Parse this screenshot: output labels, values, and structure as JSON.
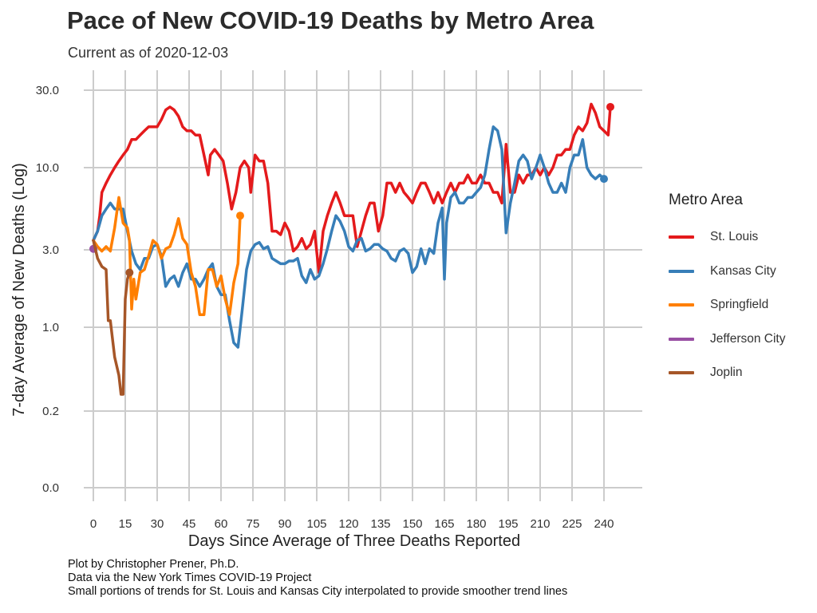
{
  "chart_data": {
    "type": "line",
    "title": "Pace of New COVID-19 Deaths by Metro Area",
    "subtitle": "Current as of 2020-12-03",
    "xlabel": "Days Since Average of Three Deaths Reported",
    "ylabel": "7-day Average of New Deaths (Log)",
    "y_scale": "log",
    "x_ticks": [
      0,
      15,
      30,
      45,
      60,
      75,
      90,
      105,
      120,
      135,
      150,
      165,
      180,
      195,
      210,
      225,
      240
    ],
    "y_ticks": [
      "0.0",
      "0.2",
      "1.0",
      "3.0",
      "10.0",
      "30.0"
    ],
    "xlim": [
      -5,
      248
    ],
    "grid": true,
    "legend": {
      "title": "Metro Area",
      "position": "right"
    },
    "series": [
      {
        "name": "St. Louis",
        "color": "#e41a1c",
        "points": [
          [
            0,
            3.5
          ],
          [
            2,
            4
          ],
          [
            3,
            5
          ],
          [
            4,
            7
          ],
          [
            6,
            8
          ],
          [
            8,
            9
          ],
          [
            10,
            10
          ],
          [
            12,
            11
          ],
          [
            14,
            12
          ],
          [
            16,
            13
          ],
          [
            18,
            15
          ],
          [
            20,
            15
          ],
          [
            22,
            16
          ],
          [
            24,
            17
          ],
          [
            26,
            18
          ],
          [
            28,
            18
          ],
          [
            30,
            18
          ],
          [
            32,
            20
          ],
          [
            34,
            23
          ],
          [
            36,
            24
          ],
          [
            38,
            23
          ],
          [
            40,
            21
          ],
          [
            42,
            18
          ],
          [
            44,
            17
          ],
          [
            46,
            17
          ],
          [
            48,
            16
          ],
          [
            50,
            16
          ],
          [
            52,
            12
          ],
          [
            54,
            9
          ],
          [
            55,
            12
          ],
          [
            57,
            13
          ],
          [
            59,
            12
          ],
          [
            61,
            11
          ],
          [
            63,
            8
          ],
          [
            65,
            5.5
          ],
          [
            67,
            7
          ],
          [
            69,
            10
          ],
          [
            71,
            11
          ],
          [
            73,
            10
          ],
          [
            74,
            7
          ],
          [
            76,
            12
          ],
          [
            78,
            11
          ],
          [
            80,
            11
          ],
          [
            82,
            8
          ],
          [
            84,
            4
          ],
          [
            86,
            4
          ],
          [
            88,
            3.8
          ],
          [
            90,
            4.5
          ],
          [
            92,
            4
          ],
          [
            94,
            3
          ],
          [
            96,
            3.2
          ],
          [
            98,
            3.6
          ],
          [
            100,
            3.1
          ],
          [
            102,
            3.3
          ],
          [
            104,
            4
          ],
          [
            106,
            2.2
          ],
          [
            108,
            4
          ],
          [
            110,
            5
          ],
          [
            112,
            6
          ],
          [
            114,
            7
          ],
          [
            116,
            6
          ],
          [
            118,
            5
          ],
          [
            120,
            5
          ],
          [
            122,
            5
          ],
          [
            124,
            3.2
          ],
          [
            126,
            4
          ],
          [
            128,
            5
          ],
          [
            130,
            6
          ],
          [
            132,
            6
          ],
          [
            134,
            4
          ],
          [
            136,
            5
          ],
          [
            138,
            8
          ],
          [
            140,
            8
          ],
          [
            142,
            7
          ],
          [
            144,
            8
          ],
          [
            146,
            7
          ],
          [
            148,
            6.5
          ],
          [
            150,
            6
          ],
          [
            152,
            7
          ],
          [
            154,
            8
          ],
          [
            156,
            8
          ],
          [
            158,
            7
          ],
          [
            160,
            6
          ],
          [
            162,
            7
          ],
          [
            164,
            6
          ],
          [
            166,
            7
          ],
          [
            168,
            8
          ],
          [
            170,
            7
          ],
          [
            172,
            8
          ],
          [
            174,
            8
          ],
          [
            176,
            9
          ],
          [
            178,
            8
          ],
          [
            180,
            8
          ],
          [
            182,
            9
          ],
          [
            184,
            8
          ],
          [
            186,
            8
          ],
          [
            188,
            7
          ],
          [
            190,
            7
          ],
          [
            192,
            6
          ],
          [
            194,
            14
          ],
          [
            196,
            7
          ],
          [
            198,
            7
          ],
          [
            200,
            9
          ],
          [
            202,
            8
          ],
          [
            204,
            9
          ],
          [
            206,
            9
          ],
          [
            208,
            10
          ],
          [
            210,
            9
          ],
          [
            212,
            10
          ],
          [
            214,
            9
          ],
          [
            216,
            10
          ],
          [
            218,
            12
          ],
          [
            220,
            12
          ],
          [
            222,
            13
          ],
          [
            224,
            13
          ],
          [
            226,
            16
          ],
          [
            228,
            18
          ],
          [
            230,
            17
          ],
          [
            232,
            19
          ],
          [
            234,
            25
          ],
          [
            236,
            22
          ],
          [
            238,
            18
          ],
          [
            240,
            17
          ],
          [
            242,
            16
          ],
          [
            243,
            24
          ]
        ],
        "end_marker": true
      },
      {
        "name": "Kansas City",
        "color": "#377eb8",
        "points": [
          [
            0,
            3.5
          ],
          [
            2,
            4
          ],
          [
            4,
            5
          ],
          [
            6,
            5.5
          ],
          [
            8,
            6
          ],
          [
            10,
            5.5
          ],
          [
            12,
            5.5
          ],
          [
            14,
            5.5
          ],
          [
            16,
            4
          ],
          [
            18,
            3
          ],
          [
            20,
            2.5
          ],
          [
            22,
            2.3
          ],
          [
            24,
            2.7
          ],
          [
            26,
            2.7
          ],
          [
            28,
            3.2
          ],
          [
            30,
            3.3
          ],
          [
            32,
            2.8
          ],
          [
            34,
            1.8
          ],
          [
            36,
            2
          ],
          [
            38,
            2.1
          ],
          [
            40,
            1.8
          ],
          [
            42,
            2.2
          ],
          [
            44,
            2.5
          ],
          [
            46,
            2
          ],
          [
            48,
            2
          ],
          [
            50,
            1.8
          ],
          [
            52,
            2
          ],
          [
            54,
            2.3
          ],
          [
            56,
            2.5
          ],
          [
            58,
            1.8
          ],
          [
            60,
            1.6
          ],
          [
            62,
            1.6
          ],
          [
            64,
            1.1
          ],
          [
            66,
            0.8
          ],
          [
            68,
            0.75
          ],
          [
            70,
            1.3
          ],
          [
            72,
            2.3
          ],
          [
            74,
            3
          ],
          [
            76,
            3.3
          ],
          [
            78,
            3.4
          ],
          [
            80,
            3.1
          ],
          [
            82,
            3.2
          ],
          [
            84,
            2.7
          ],
          [
            86,
            2.6
          ],
          [
            88,
            2.5
          ],
          [
            90,
            2.5
          ],
          [
            92,
            2.6
          ],
          [
            94,
            2.6
          ],
          [
            96,
            2.7
          ],
          [
            98,
            2.1
          ],
          [
            100,
            1.9
          ],
          [
            102,
            2.3
          ],
          [
            104,
            2
          ],
          [
            106,
            2.1
          ],
          [
            108,
            2.5
          ],
          [
            110,
            3.1
          ],
          [
            112,
            4
          ],
          [
            114,
            5
          ],
          [
            116,
            4.6
          ],
          [
            118,
            4
          ],
          [
            120,
            3.2
          ],
          [
            122,
            3
          ],
          [
            124,
            3.5
          ],
          [
            126,
            3.6
          ],
          [
            128,
            3
          ],
          [
            130,
            3.1
          ],
          [
            132,
            3.3
          ],
          [
            134,
            3.3
          ],
          [
            136,
            3.1
          ],
          [
            138,
            3
          ],
          [
            140,
            2.7
          ],
          [
            142,
            2.6
          ],
          [
            144,
            3
          ],
          [
            146,
            3.1
          ],
          [
            148,
            2.9
          ],
          [
            150,
            2.2
          ],
          [
            152,
            2.4
          ],
          [
            154,
            3.1
          ],
          [
            156,
            2.5
          ],
          [
            158,
            3.1
          ],
          [
            160,
            2.9
          ],
          [
            162,
            4.5
          ],
          [
            164,
            5.6
          ],
          [
            165,
            2
          ],
          [
            166,
            4.5
          ],
          [
            168,
            6.5
          ],
          [
            170,
            7
          ],
          [
            172,
            6
          ],
          [
            174,
            6
          ],
          [
            176,
            6.5
          ],
          [
            178,
            6.5
          ],
          [
            180,
            7
          ],
          [
            182,
            7.5
          ],
          [
            184,
            9
          ],
          [
            186,
            13
          ],
          [
            188,
            18
          ],
          [
            190,
            17
          ],
          [
            192,
            13
          ],
          [
            194,
            3.9
          ],
          [
            196,
            6
          ],
          [
            198,
            8
          ],
          [
            200,
            11
          ],
          [
            202,
            12
          ],
          [
            204,
            11
          ],
          [
            206,
            8.5
          ],
          [
            208,
            10
          ],
          [
            210,
            12
          ],
          [
            212,
            10
          ],
          [
            214,
            8
          ],
          [
            216,
            7
          ],
          [
            218,
            7
          ],
          [
            220,
            8
          ],
          [
            222,
            7
          ],
          [
            224,
            10
          ],
          [
            226,
            12
          ],
          [
            228,
            12
          ],
          [
            230,
            15
          ],
          [
            232,
            10
          ],
          [
            234,
            9
          ],
          [
            236,
            8.5
          ],
          [
            238,
            9
          ],
          [
            240,
            8.5
          ]
        ],
        "end_marker": true
      },
      {
        "name": "Springfield",
        "color": "#ff7f00",
        "points": [
          [
            0,
            3.5
          ],
          [
            2,
            3.2
          ],
          [
            4,
            3
          ],
          [
            6,
            3.2
          ],
          [
            8,
            3
          ],
          [
            10,
            4.2
          ],
          [
            12,
            6.5
          ],
          [
            14,
            4.5
          ],
          [
            16,
            4.2
          ],
          [
            17,
            3.5
          ],
          [
            18,
            1.3
          ],
          [
            19,
            2
          ],
          [
            20,
            1.5
          ],
          [
            22,
            2.2
          ],
          [
            24,
            2.3
          ],
          [
            26,
            2.8
          ],
          [
            28,
            3.5
          ],
          [
            30,
            3.3
          ],
          [
            32,
            2.7
          ],
          [
            34,
            3.1
          ],
          [
            36,
            3.2
          ],
          [
            38,
            3.8
          ],
          [
            40,
            4.8
          ],
          [
            42,
            3.6
          ],
          [
            44,
            3.3
          ],
          [
            46,
            2.2
          ],
          [
            48,
            1.8
          ],
          [
            50,
            1.2
          ],
          [
            52,
            1.2
          ],
          [
            54,
            2.3
          ],
          [
            56,
            2.3
          ],
          [
            58,
            1.8
          ],
          [
            60,
            2.1
          ],
          [
            62,
            1.5
          ],
          [
            64,
            1.2
          ],
          [
            66,
            1.9
          ],
          [
            68,
            2.5
          ],
          [
            69,
            5
          ]
        ],
        "end_marker": true
      },
      {
        "name": "Jefferson City",
        "color": "#984ea3",
        "points": [
          [
            0,
            3.1
          ]
        ],
        "end_marker": true
      },
      {
        "name": "Joplin",
        "color": "#a65628",
        "points": [
          [
            0,
            3.5
          ],
          [
            2,
            2.7
          ],
          [
            4,
            2.4
          ],
          [
            6,
            2.3
          ],
          [
            7,
            1.1
          ],
          [
            8,
            1.1
          ],
          [
            10,
            0.65
          ],
          [
            12,
            0.5
          ],
          [
            13,
            0.38
          ],
          [
            14,
            0.38
          ],
          [
            15,
            1.5
          ],
          [
            16,
            2
          ],
          [
            17,
            2.2
          ]
        ],
        "end_marker": true
      }
    ]
  },
  "caption": [
    "Plot by Christopher Prener, Ph.D.",
    "Data via the New York Times COVID-19 Project",
    "Small portions of trends for St. Louis and Kansas City interpolated to provide smoother trend lines"
  ]
}
